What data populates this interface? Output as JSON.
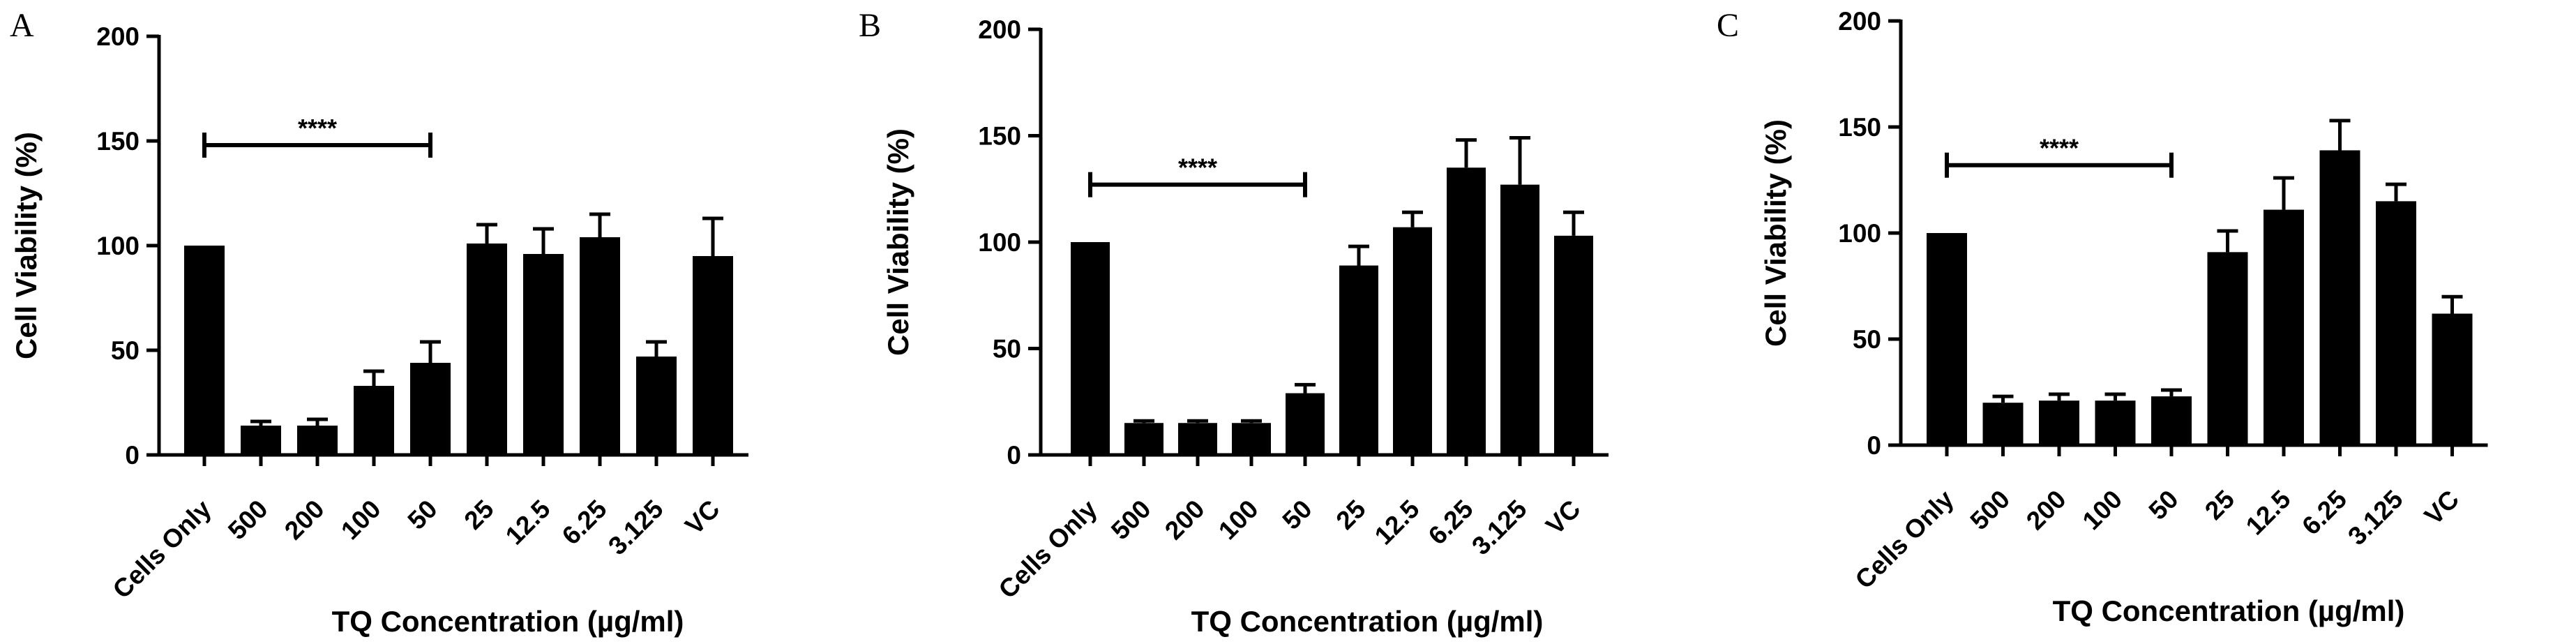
{
  "chart_data": [
    {
      "panel": "A",
      "type": "bar",
      "xlabel": "TQ Concentration (µg/ml)",
      "ylabel": "Cell Viability (%)",
      "ylim": [
        0,
        200
      ],
      "yticks": [
        0,
        50,
        100,
        150,
        200
      ],
      "categories": [
        "Cells Only",
        "500",
        "200",
        "100",
        "50",
        "25",
        "12.5",
        "6.25",
        "3.125",
        "VC"
      ],
      "values": [
        100,
        14,
        14,
        33,
        44,
        101,
        96,
        104,
        47,
        95
      ],
      "errors": [
        0,
        2,
        3,
        7,
        10,
        9,
        12,
        11,
        7,
        18
      ],
      "significance": {
        "label": "****",
        "from": "Cells Only",
        "to": "50",
        "y": 148
      },
      "color": "#000000"
    },
    {
      "panel": "B",
      "type": "bar",
      "xlabel": "TQ Concentration (µg/ml)",
      "ylabel": "Cell Viability (%)",
      "ylim": [
        0,
        200
      ],
      "yticks": [
        0,
        50,
        100,
        150,
        200
      ],
      "categories": [
        "Cells Only",
        "500",
        "200",
        "100",
        "50",
        "25",
        "12.5",
        "6.25",
        "3.125",
        "VC"
      ],
      "values": [
        100,
        15,
        15,
        15,
        29,
        89,
        107,
        135,
        127,
        103
      ],
      "errors": [
        0,
        1,
        1,
        1,
        4,
        9,
        7,
        13,
        22,
        11
      ],
      "significance": {
        "label": "****",
        "from": "Cells Only",
        "to": "50",
        "y": 127
      },
      "color": "#000000"
    },
    {
      "panel": "C",
      "type": "bar",
      "xlabel": "TQ Concentration (µg/ml)",
      "ylabel": "Cell Viability (%)",
      "ylim": [
        0,
        200
      ],
      "yticks": [
        0,
        50,
        100,
        150,
        200
      ],
      "categories": [
        "Cells Only",
        "500",
        "200",
        "100",
        "50",
        "25",
        "12.5",
        "6.25",
        "3.125",
        "VC"
      ],
      "values": [
        100,
        20,
        21,
        21,
        23,
        91,
        111,
        139,
        115,
        62
      ],
      "errors": [
        0,
        3,
        3,
        3,
        3,
        10,
        15,
        14,
        8,
        8
      ],
      "significance": {
        "label": "****",
        "from": "Cells Only",
        "to": "50",
        "y": 132
      },
      "color": "#000000"
    }
  ]
}
